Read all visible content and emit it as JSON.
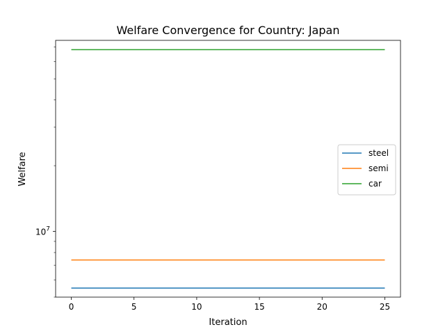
{
  "chart_data": {
    "type": "line",
    "title": "Welfare Convergence for Country: Japan",
    "xlabel": "Iteration",
    "ylabel": "Welfare",
    "x_ticks": [
      0,
      5,
      10,
      15,
      20,
      25
    ],
    "x_range": [
      -1.25,
      26.25
    ],
    "y_scale": "log",
    "y_range": [
      5000000,
      75000000
    ],
    "y_major_ticks": [
      {
        "value": 10000000,
        "base": "10",
        "exp": "7"
      }
    ],
    "y_minor_ticks": [
      5000000,
      6000000,
      7000000,
      8000000,
      9000000,
      20000000,
      30000000,
      40000000,
      50000000,
      60000000,
      70000000
    ],
    "grid": false,
    "legend_position": "center-right",
    "series": [
      {
        "name": "steel",
        "color": "#1f77b4",
        "x": [
          0,
          25
        ],
        "y": [
          5500000,
          5500000
        ]
      },
      {
        "name": "semi",
        "color": "#ff7f0e",
        "x": [
          0,
          25
        ],
        "y": [
          7400000,
          7400000
        ]
      },
      {
        "name": "car",
        "color": "#2ca02c",
        "x": [
          0,
          25
        ],
        "y": [
          68000000,
          68000000
        ]
      }
    ]
  }
}
